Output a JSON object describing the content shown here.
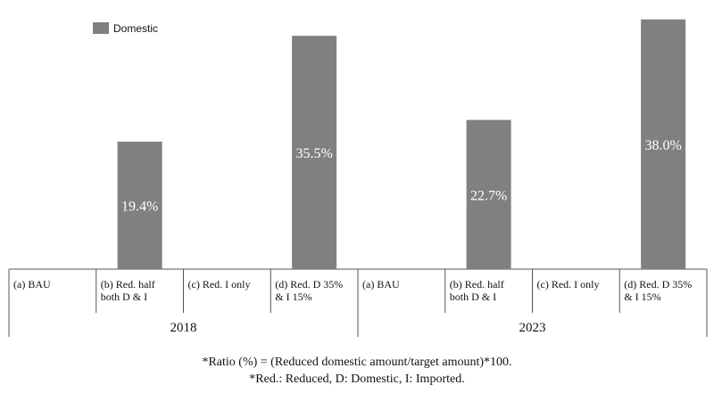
{
  "chart_data": {
    "type": "bar",
    "legend": {
      "label": "Domestic",
      "position": "top-left"
    },
    "groups": [
      {
        "label": "2018",
        "categories": [
          "(a) BAU",
          "(b) Red. half both D & I",
          "(c) Red. I only",
          "(d) Red. D 35% & I 15%"
        ],
        "category_lines": [
          [
            "(a) BAU"
          ],
          [
            "(b) Red. half",
            "both D & I"
          ],
          [
            "(c) Red. I only"
          ],
          [
            "(d) Red. D 35%",
            "& I 15%"
          ]
        ],
        "values": [
          null,
          19.4,
          null,
          35.5
        ],
        "value_labels": [
          "",
          "19.4%",
          "",
          "35.5%"
        ]
      },
      {
        "label": "2023",
        "categories": [
          "(a) BAU",
          "(b) Red. half both D & I",
          "(c) Red. I only",
          "(d) Red. D 35% & I 15%"
        ],
        "category_lines": [
          [
            "(a) BAU"
          ],
          [
            "(b) Red. half",
            "both D & I"
          ],
          [
            "(c) Red. I only"
          ],
          [
            "(d) Red. D 35%",
            "& I 15%"
          ]
        ],
        "values": [
          null,
          22.7,
          null,
          38.0
        ],
        "value_labels": [
          "",
          "22.7%",
          "",
          "38.0%"
        ]
      }
    ],
    "series_color": "#808080",
    "ylim": [
      0,
      40
    ],
    "grid": false
  },
  "footnotes": [
    "*Ratio (%) = (Reduced domestic amount/target amount)*100.",
    "*Red.: Reduced, D: Domestic, I: Imported."
  ]
}
